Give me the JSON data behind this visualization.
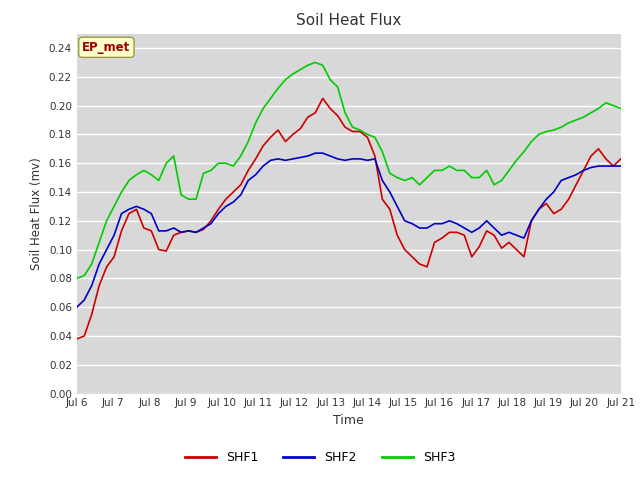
{
  "title": "Soil Heat Flux",
  "xlabel": "Time",
  "ylabel": "Soil Heat Flux (mv)",
  "ylim": [
    0.0,
    0.25
  ],
  "yticks": [
    0.0,
    0.02,
    0.04,
    0.06,
    0.08,
    0.1,
    0.12,
    0.14,
    0.16,
    0.18,
    0.2,
    0.22,
    0.24
  ],
  "fig_bg_color": "#ffffff",
  "plot_bg_color": "#d8d8d8",
  "grid_color": "#ffffff",
  "annotation_text": "EP_met",
  "annotation_bg": "#ffffcc",
  "annotation_fg": "#990000",
  "annotation_edge": "#999944",
  "colors": {
    "SHF1": "#cc0000",
    "SHF2": "#0000cc",
    "SHF3": "#00cc00"
  },
  "line_width": 1.2,
  "x_labels": [
    "Jul 6",
    "Jul 7",
    "Jul 8",
    "Jul 9",
    "Jul 10",
    "Jul 11",
    "Jul 12",
    "Jul 13",
    "Jul 14",
    "Jul 15",
    "Jul 16",
    "Jul 17",
    "Jul 18",
    "Jul 19",
    "Jul 20",
    "Jul 21"
  ],
  "SHF1": [
    0.038,
    0.04,
    0.055,
    0.075,
    0.088,
    0.095,
    0.113,
    0.125,
    0.128,
    0.115,
    0.113,
    0.1,
    0.099,
    0.11,
    0.112,
    0.113,
    0.112,
    0.114,
    0.12,
    0.128,
    0.135,
    0.14,
    0.145,
    0.155,
    0.163,
    0.172,
    0.178,
    0.183,
    0.175,
    0.18,
    0.184,
    0.192,
    0.195,
    0.205,
    0.198,
    0.193,
    0.185,
    0.182,
    0.182,
    0.178,
    0.165,
    0.135,
    0.128,
    0.11,
    0.1,
    0.095,
    0.09,
    0.088,
    0.105,
    0.108,
    0.112,
    0.112,
    0.11,
    0.095,
    0.102,
    0.113,
    0.11,
    0.101,
    0.105,
    0.1,
    0.095,
    0.12,
    0.128,
    0.132,
    0.125,
    0.128,
    0.135,
    0.145,
    0.155,
    0.165,
    0.17,
    0.163,
    0.158,
    0.163
  ],
  "SHF2": [
    0.06,
    0.065,
    0.075,
    0.09,
    0.1,
    0.11,
    0.125,
    0.128,
    0.13,
    0.128,
    0.125,
    0.113,
    0.113,
    0.115,
    0.112,
    0.113,
    0.112,
    0.115,
    0.118,
    0.125,
    0.13,
    0.133,
    0.138,
    0.148,
    0.152,
    0.158,
    0.162,
    0.163,
    0.162,
    0.163,
    0.164,
    0.165,
    0.167,
    0.167,
    0.165,
    0.163,
    0.162,
    0.163,
    0.163,
    0.162,
    0.163,
    0.148,
    0.14,
    0.13,
    0.12,
    0.118,
    0.115,
    0.115,
    0.118,
    0.118,
    0.12,
    0.118,
    0.115,
    0.112,
    0.115,
    0.12,
    0.115,
    0.11,
    0.112,
    0.11,
    0.108,
    0.12,
    0.128,
    0.135,
    0.14,
    0.148,
    0.15,
    0.152,
    0.155,
    0.157,
    0.158,
    0.158,
    0.158,
    0.158
  ],
  "SHF3": [
    0.08,
    0.082,
    0.09,
    0.105,
    0.12,
    0.13,
    0.14,
    0.148,
    0.152,
    0.155,
    0.152,
    0.148,
    0.16,
    0.165,
    0.138,
    0.135,
    0.135,
    0.153,
    0.155,
    0.16,
    0.16,
    0.158,
    0.165,
    0.175,
    0.188,
    0.198,
    0.205,
    0.212,
    0.218,
    0.222,
    0.225,
    0.228,
    0.23,
    0.228,
    0.218,
    0.213,
    0.195,
    0.185,
    0.183,
    0.18,
    0.178,
    0.168,
    0.153,
    0.15,
    0.148,
    0.15,
    0.145,
    0.15,
    0.155,
    0.155,
    0.158,
    0.155,
    0.155,
    0.15,
    0.15,
    0.155,
    0.145,
    0.148,
    0.155,
    0.162,
    0.168,
    0.175,
    0.18,
    0.182,
    0.183,
    0.185,
    0.188,
    0.19,
    0.192,
    0.195,
    0.198,
    0.202,
    0.2,
    0.198
  ]
}
